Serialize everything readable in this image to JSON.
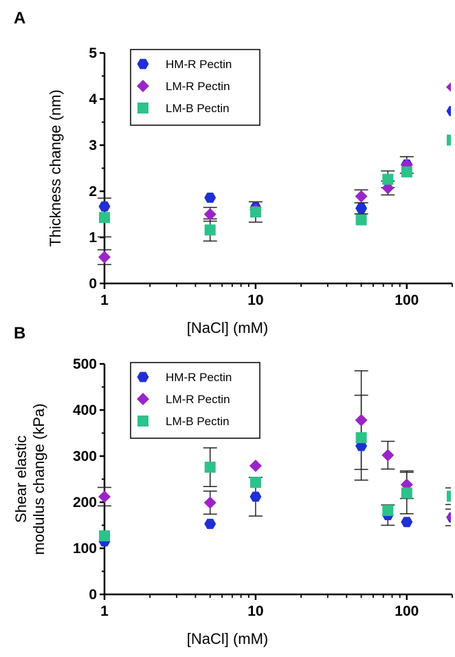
{
  "colors": {
    "HM-R Pectin": "#1f2fd6",
    "LM-R Pectin": "#9b24c9",
    "LM-B Pectin": "#2cc28a"
  },
  "chart_data": [
    {
      "type": "scatter",
      "panel_label": "A",
      "xlabel": "[NaCl] (mM)",
      "ylabel": "Thickness change (nm)",
      "ylabel_lines": [
        "Thickness change (nm)"
      ],
      "x_scale": "log",
      "xlim": [
        1,
        200
      ],
      "ylim": [
        0,
        5
      ],
      "x_ticks": [
        1,
        10,
        100
      ],
      "x_tick_labels": [
        "1",
        "10",
        "100"
      ],
      "y_ticks": [
        0,
        1,
        2,
        3,
        4,
        5
      ],
      "y_tick_labels": [
        "0",
        "1",
        "2",
        "3",
        "4",
        "5"
      ],
      "legend_position": "top-left",
      "series": [
        {
          "name": "HM-R Pectin",
          "marker": "hexagon",
          "x": [
            1,
            5,
            10,
            50,
            75,
            100,
            200
          ],
          "y": [
            1.67,
            1.86,
            1.65,
            1.63,
            2.22,
            2.58,
            3.74
          ],
          "err": [
            0,
            0,
            0,
            0.12,
            0,
            0,
            0
          ]
        },
        {
          "name": "LM-R Pectin",
          "marker": "diamond",
          "x": [
            1,
            5,
            10,
            50,
            75,
            100,
            200
          ],
          "y": [
            0.57,
            1.5,
            1.6,
            1.89,
            2.07,
            2.57,
            4.26
          ],
          "err": [
            0.16,
            0.15,
            0,
            0.14,
            0.15,
            0.18,
            0
          ]
        },
        {
          "name": "LM-B Pectin",
          "marker": "square",
          "x": [
            1,
            5,
            10,
            50,
            75,
            100,
            200
          ],
          "y": [
            1.43,
            1.16,
            1.55,
            1.38,
            2.26,
            2.42,
            3.11
          ],
          "err": [
            0.42,
            0.24,
            0.22,
            0,
            0.18,
            0,
            0
          ]
        }
      ]
    },
    {
      "type": "scatter",
      "panel_label": "B",
      "xlabel": "[NaCl] (mM)",
      "ylabel": "Shear elastic modulus change (kPa)",
      "ylabel_lines": [
        "Shear elastic",
        "modulus change (kPa)"
      ],
      "x_scale": "log",
      "xlim": [
        1,
        200
      ],
      "ylim": [
        0,
        500
      ],
      "x_ticks": [
        1,
        10,
        100
      ],
      "x_tick_labels": [
        "1",
        "10",
        "100"
      ],
      "y_ticks": [
        0,
        100,
        200,
        300,
        400,
        500
      ],
      "y_tick_labels": [
        "0",
        "100",
        "200",
        "300",
        "400",
        "500"
      ],
      "legend_position": "top-left",
      "series": [
        {
          "name": "HM-R Pectin",
          "marker": "hexagon",
          "x": [
            1,
            5,
            10,
            50,
            75,
            100,
            200
          ],
          "y": [
            115,
            153,
            212,
            322,
            172,
            157,
            167
          ],
          "err": [
            0,
            0,
            42,
            0,
            22,
            0,
            18
          ]
        },
        {
          "name": "LM-R Pectin",
          "marker": "diamond",
          "x": [
            1,
            5,
            10,
            50,
            75,
            100,
            200
          ],
          "y": [
            212,
            199,
            279,
            378,
            302,
            238,
            168
          ],
          "err": [
            20,
            25,
            0,
            107,
            30,
            30,
            0
          ]
        },
        {
          "name": "LM-B Pectin",
          "marker": "square",
          "x": [
            1,
            5,
            10,
            50,
            75,
            100,
            200
          ],
          "y": [
            127,
            276,
            243,
            340,
            182,
            220,
            213
          ],
          "err": [
            0,
            42,
            0,
            92,
            0,
            45,
            18
          ]
        }
      ]
    }
  ]
}
